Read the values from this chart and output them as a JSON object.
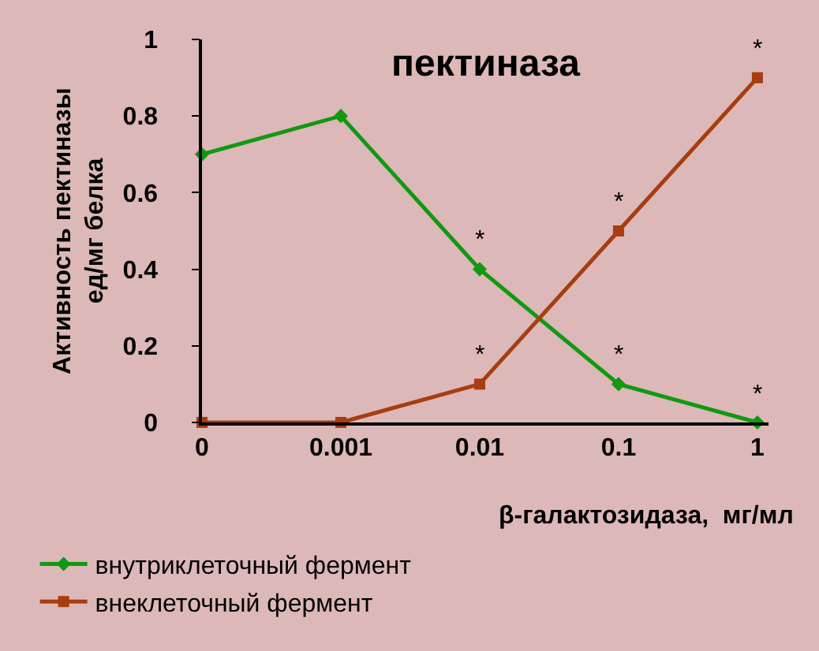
{
  "chart_data": {
    "type": "line",
    "title": "пектиназа",
    "xlabel": "β-галактозидаза,  мг/мл",
    "ylabel": "Активность пектиназы\nед/мг белка",
    "categories": [
      "0",
      "0.001",
      "0.01",
      "0.1",
      "1"
    ],
    "series": [
      {
        "name": "внутриклеточный фермент",
        "color": "#119911",
        "marker": "diamond",
        "values": [
          0.7,
          0.8,
          0.4,
          0.1,
          0
        ]
      },
      {
        "name": "внеклеточный фермент",
        "color": "#a83d10",
        "marker": "square",
        "values": [
          0,
          0,
          0.1,
          0.5,
          0.9
        ]
      }
    ],
    "annotations": [
      {
        "text": "*",
        "x": "0.01",
        "y": 0.4
      },
      {
        "text": "*",
        "x": "0.1",
        "y": 0.1
      },
      {
        "text": "*",
        "x": "1",
        "y": 0
      },
      {
        "text": "*",
        "x": "0.01",
        "y": 0.1
      },
      {
        "text": "*",
        "x": "0.1",
        "y": 0.5
      },
      {
        "text": "*",
        "x": "1",
        "y": 0.9
      }
    ],
    "ylim": [
      0,
      1
    ],
    "yticks": [
      0,
      0.2,
      0.4,
      0.6,
      0.8,
      1
    ],
    "grid": false,
    "legend": "bottom",
    "line_style": "solid"
  }
}
